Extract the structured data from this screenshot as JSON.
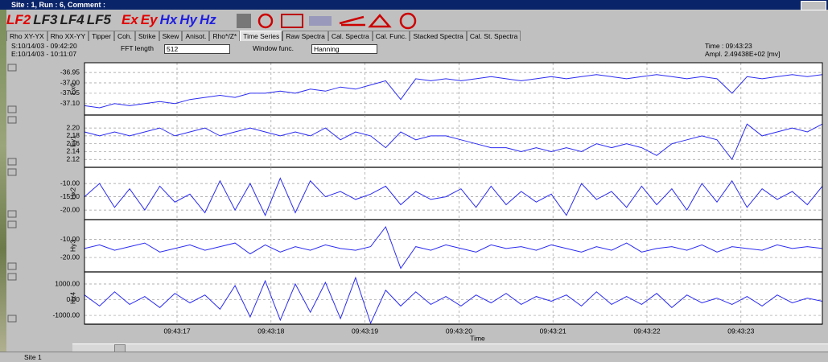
{
  "window": {
    "title": "Site : 1, Run : 6, Comment :"
  },
  "toolbar": {
    "items": [
      "LF2",
      "LF3",
      "LF4",
      "LF5",
      "Ex",
      "Ey",
      "Hx",
      "Hy",
      "Hz"
    ]
  },
  "tabs": [
    "Rho XY-YX",
    "Rho XX-YY",
    "Tipper",
    "Coh.",
    "Strike",
    "Skew",
    "Anisot.",
    "Rho*/Z*",
    "Time Series",
    "Raw Spectra",
    "Cal. Spectra",
    "Cal. Func.",
    "Stacked Spectra",
    "Cal. St. Spectra"
  ],
  "info": {
    "start": "S:10/14/03 - 09:42:20",
    "end": "E:10/14/03 - 10:11:07",
    "fft_label": "FFT length",
    "fft_value": "512",
    "window_label": "Window func.",
    "window_value": "Hanning",
    "time": "Time : 09:43:23",
    "ampl": "Ampl. 2.49438E+02 [mv]"
  },
  "chart_data": [
    {
      "type": "line",
      "ylabel": "Ex0",
      "color": "#2b2bf0",
      "grid": true,
      "ylim": [
        -37.155,
        -36.903
      ],
      "yticks": [
        -36.95,
        {
          "value": -37,
          "label": "-37.00"
        },
        -37.05,
        {
          "value": -37.1,
          "label": "-37.10"
        }
      ],
      "values": [
        -37.11,
        -37.12,
        -37.1,
        -37.11,
        -37.1,
        -37.09,
        -37.1,
        -37.08,
        -37.07,
        -37.06,
        -37.07,
        -37.05,
        -37.05,
        -37.04,
        -37.05,
        -37.03,
        -37.04,
        -37.02,
        -37.03,
        -37.01,
        -36.99,
        -37.08,
        -36.98,
        -36.99,
        -36.98,
        -36.99,
        -36.98,
        -36.97,
        -36.98,
        -36.99,
        -36.98,
        -36.97,
        -36.98,
        -36.97,
        -36.96,
        -36.97,
        -36.98,
        -36.97,
        -36.96,
        -36.97,
        -36.98,
        -36.97,
        -36.98,
        -37.05,
        -36.97,
        -36.98,
        -36.97,
        -36.96,
        -36.97,
        -36.96
      ]
    },
    {
      "type": "line",
      "ylabel": "Ey1",
      "color": "#2b2bf0",
      "grid": true,
      "ylim": [
        2.1,
        2.233
      ],
      "yticks": [
        {
          "value": 2.2,
          "label": "2.20"
        },
        2.18,
        2.16,
        2.14,
        2.12
      ],
      "values": [
        2.19,
        2.18,
        2.19,
        2.18,
        2.19,
        2.2,
        2.18,
        2.19,
        2.2,
        2.18,
        2.19,
        2.2,
        2.19,
        2.18,
        2.19,
        2.18,
        2.2,
        2.17,
        2.19,
        2.18,
        2.15,
        2.19,
        2.17,
        2.18,
        2.18,
        2.17,
        2.16,
        2.15,
        2.15,
        2.14,
        2.15,
        2.14,
        2.15,
        2.14,
        2.16,
        2.15,
        2.16,
        2.15,
        2.13,
        2.16,
        2.17,
        2.18,
        2.17,
        2.12,
        2.21,
        2.18,
        2.19,
        2.2,
        2.19,
        2.21
      ]
    },
    {
      "type": "line",
      "ylabel": "Hx2",
      "color": "#2b2bf0",
      "grid": true,
      "ylim": [
        -23.6,
        -3.9
      ],
      "yticks": [
        {
          "value": -10,
          "label": "-10.00"
        },
        {
          "value": -15,
          "label": "-15.00"
        },
        {
          "value": -20,
          "label": "-20.00"
        }
      ],
      "values": [
        -15,
        -10,
        -19,
        -12,
        -20,
        -11,
        -17,
        -14,
        -21,
        -9,
        -20,
        -10,
        -22,
        -8,
        -21,
        -9,
        -15,
        -13,
        -16,
        -14,
        -11,
        -18,
        -13,
        -16,
        -15,
        -12,
        -19,
        -11,
        -18,
        -13,
        -17,
        -14,
        -22,
        -10,
        -16,
        -13,
        -19,
        -11,
        -18,
        -12,
        -20,
        -10,
        -17,
        -9,
        -19,
        -12,
        -16,
        -13,
        -18,
        -11
      ]
    },
    {
      "type": "line",
      "ylabel": "Hy3",
      "color": "#2b2bf0",
      "grid": true,
      "ylim": [
        -28,
        1
      ],
      "yticks": [
        {
          "value": -10,
          "label": "-10.00"
        },
        {
          "value": -20,
          "label": "-20.00"
        }
      ],
      "values": [
        -15,
        -13,
        -16,
        -14,
        -12,
        -17,
        -15,
        -13,
        -16,
        -14,
        -12,
        -18,
        -13,
        -17,
        -14,
        -16,
        -13,
        -15,
        -16,
        -14,
        -3,
        -26,
        -14,
        -16,
        -13,
        -15,
        -17,
        -13,
        -15,
        -14,
        -16,
        -13,
        -15,
        -17,
        -14,
        -16,
        -12,
        -17,
        -15,
        -14,
        -16,
        -13,
        -17,
        -14,
        -15,
        -16,
        -13,
        -15,
        -14,
        -15
      ]
    },
    {
      "type": "line",
      "ylabel": "Hz4",
      "color": "#2b2bf0",
      "grid": true,
      "ylim": [
        -1560,
        1770
      ],
      "yticks": [
        {
          "value": 1000,
          "label": "1000.00"
        },
        {
          "value": 0,
          "label": "0.00"
        },
        {
          "value": -1000,
          "label": "-1000.00"
        }
      ],
      "values": [
        300,
        -400,
        500,
        -300,
        200,
        -500,
        400,
        -200,
        300,
        -600,
        900,
        -1100,
        1200,
        -1300,
        1000,
        -800,
        1100,
        -1200,
        1400,
        -1500,
        600,
        -400,
        500,
        -300,
        200,
        -400,
        300,
        -200,
        400,
        -300,
        200,
        -100,
        300,
        -400,
        500,
        -300,
        200,
        -300,
        400,
        -500,
        300,
        -200,
        100,
        -300,
        200,
        -400,
        300,
        -200,
        100,
        -100
      ],
      "xlabel": "Time",
      "x_tick_labels": [
        "09:43:17",
        "09:43:18",
        "09:43:19",
        "09:43:20",
        "09:43:21",
        "09:43:22",
        "09:43:23"
      ]
    }
  ],
  "status": {
    "site": "Site 1"
  }
}
